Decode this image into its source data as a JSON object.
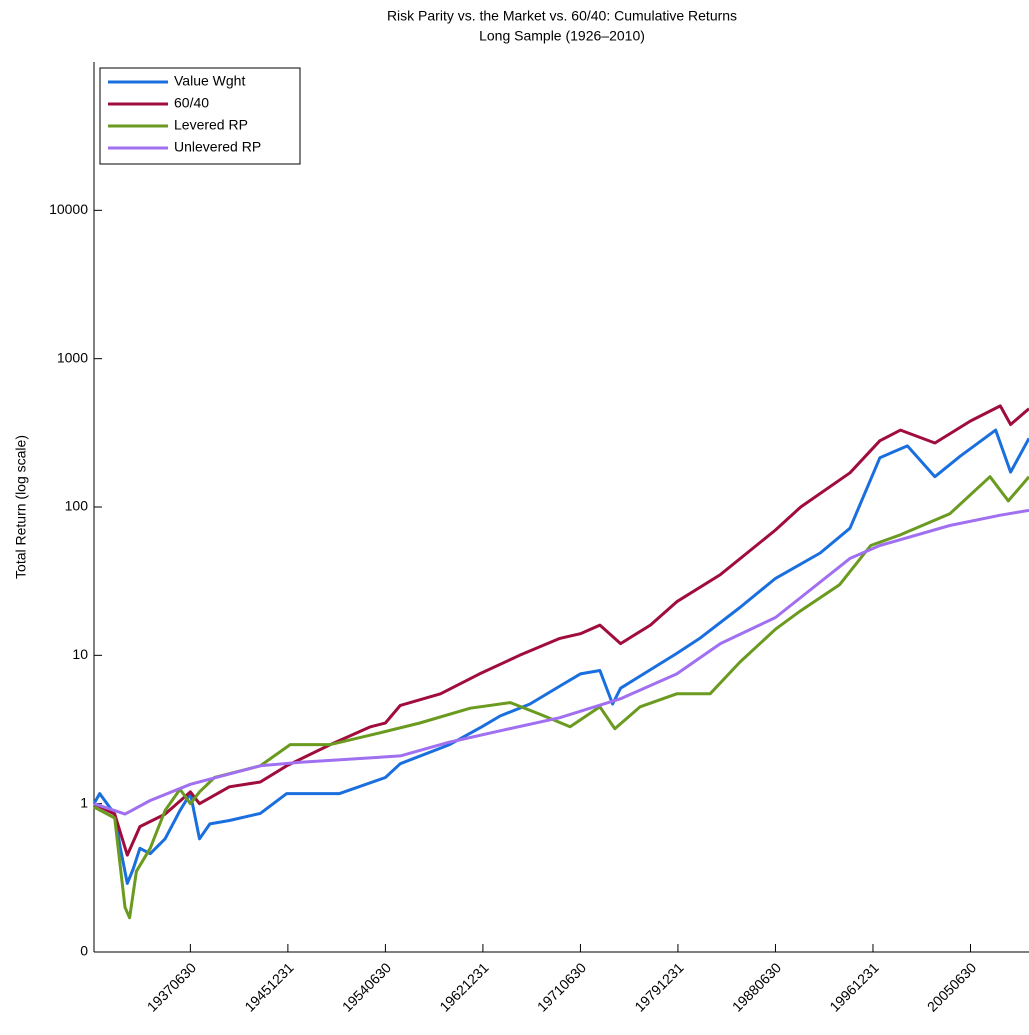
{
  "chart_data": {
    "type": "line",
    "title": "Risk Parity vs. the Market vs. 60/40: Cumulative Returns",
    "subtitle": "Long Sample (1926–2010)",
    "y_label": "Total Return (log scale)",
    "log_y": true,
    "legend": "upper-left",
    "xlim": [
      1929.1,
      2010.6
    ],
    "xticks": [
      {
        "value": 1937.5,
        "label": "19370630"
      },
      {
        "value": 1946.0,
        "label": "19451231"
      },
      {
        "value": 1954.5,
        "label": "19540630"
      },
      {
        "value": 1963.0,
        "label": "19621231"
      },
      {
        "value": 1971.5,
        "label": "19710630"
      },
      {
        "value": 1980.0,
        "label": "19791231"
      },
      {
        "value": 1988.5,
        "label": "19880630"
      },
      {
        "value": 1997.0,
        "label": "19961231"
      },
      {
        "value": 2005.5,
        "label": "20050630"
      }
    ],
    "ylim": [
      0.1,
      100000
    ],
    "yticks": [
      {
        "value": 0.1,
        "label": "0"
      },
      1,
      10,
      100,
      1000,
      10000
    ],
    "series": [
      {
        "name": "Value Wght",
        "color": "#1a6fdf",
        "x": [
          1929.1,
          1929.6,
          1930.9,
          1931.4,
          1932.0,
          1932.5,
          1933.1,
          1934.0,
          1935.3,
          1936.6,
          1937.5,
          1938.3,
          1939.2,
          1940.9,
          1943.6,
          1945.9,
          1950.5,
          1954.5,
          1955.8,
          1960.1,
          1962.9,
          1964.5,
          1967.1,
          1969.7,
          1971.5,
          1973.2,
          1974.3,
          1975.0,
          1979.9,
          1981.9,
          1985.4,
          1988.5,
          1992.4,
          1995.0,
          1997.6,
          2000.0,
          2002.4,
          2004.6,
          2007.7,
          2009.0,
          2010.6
        ],
        "values": [
          1.0,
          1.17,
          0.85,
          0.5,
          0.29,
          0.36,
          0.5,
          0.46,
          0.58,
          0.9,
          1.17,
          0.58,
          0.73,
          0.77,
          0.86,
          1.17,
          1.17,
          1.5,
          1.86,
          2.5,
          3.3,
          3.9,
          4.7,
          6.2,
          7.5,
          7.9,
          4.7,
          6,
          10.3,
          13,
          21,
          33,
          49,
          72,
          215,
          258,
          160,
          220,
          330,
          172,
          290
        ]
      },
      {
        "name": "60/40",
        "color": "#a00d3c",
        "x": [
          1929.1,
          1930.9,
          1932.0,
          1933.1,
          1935.3,
          1937.5,
          1938.3,
          1940.9,
          1943.6,
          1945.9,
          1949.7,
          1953.2,
          1954.5,
          1955.8,
          1959.3,
          1962.7,
          1966.2,
          1969.7,
          1971.5,
          1973.2,
          1975.0,
          1977.6,
          1979.9,
          1983.7,
          1988.5,
          1990.7,
          1995.0,
          1997.6,
          1999.4,
          2002.4,
          2005.5,
          2008.1,
          2009.0,
          2010.6
        ],
        "values": [
          1.0,
          0.85,
          0.45,
          0.7,
          0.85,
          1.2,
          1.0,
          1.3,
          1.4,
          1.8,
          2.5,
          3.3,
          3.5,
          4.6,
          5.5,
          7.5,
          10,
          13,
          14,
          16,
          12,
          16,
          23,
          35,
          70,
          100,
          170,
          280,
          330,
          270,
          380,
          480,
          360,
          460
        ]
      },
      {
        "name": "Levered RP",
        "color": "#6a9a1f",
        "x": [
          1929.1,
          1930.9,
          1931.8,
          1932.2,
          1932.8,
          1934.0,
          1935.3,
          1936.6,
          1937.5,
          1938.3,
          1939.6,
          1943.6,
          1946.2,
          1949.7,
          1953.2,
          1957.5,
          1961.9,
          1965.4,
          1968.0,
          1970.6,
          1973.2,
          1974.5,
          1976.7,
          1979.9,
          1982.8,
          1985.4,
          1988.5,
          1990.7,
          1994.1,
          1996.8,
          1999.4,
          2003.7,
          2007.2,
          2008.8,
          2010.6
        ],
        "values": [
          0.95,
          0.8,
          0.2,
          0.17,
          0.35,
          0.5,
          0.9,
          1.25,
          1.0,
          1.2,
          1.5,
          1.8,
          2.5,
          2.5,
          2.9,
          3.5,
          4.4,
          4.8,
          4.0,
          3.3,
          4.5,
          3.2,
          4.5,
          5.5,
          5.5,
          9,
          15,
          20,
          30,
          55,
          65,
          90,
          160,
          110,
          160
        ]
      },
      {
        "name": "Unlevered RP",
        "color": "#a070f0",
        "x": [
          1929.1,
          1931.8,
          1934.0,
          1937.5,
          1943.6,
          1947.1,
          1955.8,
          1960.1,
          1964.5,
          1969.7,
          1975.0,
          1979.9,
          1983.7,
          1988.5,
          1995.0,
          1997.6,
          2003.7,
          2008.1,
          2010.6
        ],
        "values": [
          1.0,
          0.85,
          1.05,
          1.35,
          1.8,
          1.9,
          2.1,
          2.6,
          3.1,
          3.8,
          5.1,
          7.5,
          12,
          18,
          45,
          55,
          75,
          88,
          95
        ]
      }
    ]
  }
}
